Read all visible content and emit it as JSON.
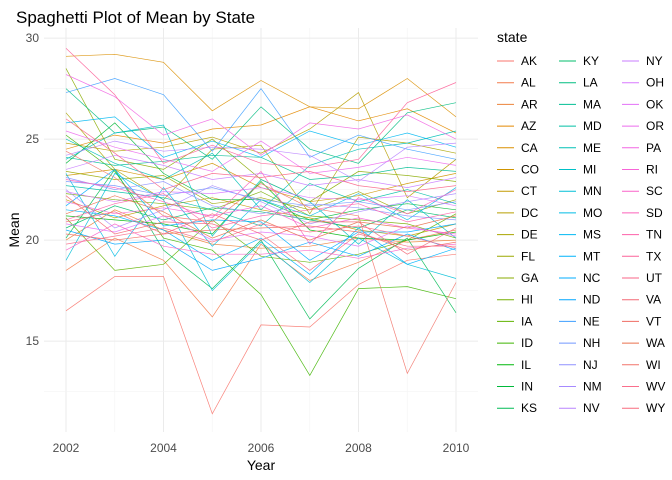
{
  "chart_data": {
    "type": "line",
    "title": "Spaghetti Plot of Mean by State",
    "xlabel": "Year",
    "ylabel": "Mean",
    "xlim": [
      2002,
      2010
    ],
    "ylim": [
      10.5,
      30.5
    ],
    "xticks": [
      2002,
      2004,
      2006,
      2008,
      2010
    ],
    "yticks": [
      15,
      20,
      25,
      30
    ],
    "grid": true,
    "legend_title": "state",
    "legend_position": "right",
    "x": [
      2002,
      2003,
      2004,
      2005,
      2006,
      2007,
      2008,
      2009,
      2010
    ],
    "series": [
      {
        "name": "AK",
        "color": "#F8766D",
        "values": [
          16.5,
          18.2,
          18.2,
          11.4,
          15.8,
          15.7,
          17.8,
          19.0,
          19.3
        ]
      },
      {
        "name": "AL",
        "color": "#F47C4B",
        "values": [
          18.5,
          20.1,
          19.0,
          16.2,
          19.8,
          18.0,
          18.9,
          20.0,
          20.5
        ]
      },
      {
        "name": "AR",
        "color": "#EC8239",
        "values": [
          20.0,
          21.5,
          20.5,
          19.8,
          19.6,
          19.7,
          20.1,
          19.9,
          20.0
        ]
      },
      {
        "name": "AZ",
        "color": "#E38900",
        "values": [
          24.5,
          25.2,
          24.8,
          25.5,
          25.7,
          26.6,
          25.9,
          26.5,
          25.3
        ]
      },
      {
        "name": "CA",
        "color": "#DA8F00",
        "values": [
          29.1,
          29.2,
          28.8,
          26.4,
          27.9,
          26.6,
          26.5,
          28.0,
          26.1
        ]
      },
      {
        "name": "CO",
        "color": "#CF9400",
        "values": [
          23.2,
          23.5,
          23.0,
          23.8,
          22.6,
          21.9,
          22.2,
          22.8,
          23.3
        ]
      },
      {
        "name": "CT",
        "color": "#C49A00",
        "values": [
          22.0,
          21.1,
          21.7,
          22.1,
          21.5,
          21.1,
          20.5,
          20.2,
          20.8
        ]
      },
      {
        "name": "DC",
        "color": "#B79F00",
        "values": [
          24.8,
          24.4,
          24.6,
          25.1,
          24.3,
          25.5,
          27.3,
          22.1,
          24.0
        ]
      },
      {
        "name": "DE",
        "color": "#AAA400",
        "values": [
          26.3,
          23.5,
          22.0,
          24.5,
          24.7,
          21.3,
          25.1,
          24.8,
          24.3
        ]
      },
      {
        "name": "FL",
        "color": "#9BA800",
        "values": [
          23.4,
          23.0,
          23.2,
          21.8,
          22.1,
          21.5,
          22.4,
          21.3,
          22.0
        ]
      },
      {
        "name": "GA",
        "color": "#8AAB00",
        "values": [
          28.5,
          24.0,
          23.5,
          25.0,
          23.0,
          21.9,
          23.4,
          23.2,
          22.9
        ]
      },
      {
        "name": "HI",
        "color": "#77AF00",
        "values": [
          22.3,
          22.0,
          21.8,
          21.5,
          22.4,
          21.2,
          21.0,
          20.8,
          20.1
        ]
      },
      {
        "name": "IA",
        "color": "#60B200",
        "values": [
          21.1,
          18.5,
          18.8,
          21.0,
          19.2,
          18.9,
          19.3,
          20.0,
          21.3
        ]
      },
      {
        "name": "ID",
        "color": "#3FB500",
        "values": [
          25.2,
          23.4,
          20.1,
          19.5,
          17.3,
          13.3,
          17.6,
          17.7,
          17.1
        ]
      },
      {
        "name": "IL",
        "color": "#00B70C",
        "values": [
          21.2,
          21.0,
          20.8,
          20.3,
          22.9,
          20.5,
          20.1,
          20.0,
          20.4
        ]
      },
      {
        "name": "IN",
        "color": "#00B93A",
        "values": [
          23.8,
          25.8,
          23.3,
          22.0,
          22.0,
          21.0,
          21.5,
          21.8,
          21.5
        ]
      },
      {
        "name": "KS",
        "color": "#00BB55",
        "values": [
          20.1,
          23.5,
          19.5,
          17.6,
          20.0,
          16.1,
          18.6,
          20.1,
          16.4
        ]
      },
      {
        "name": "KY",
        "color": "#00BC6B",
        "values": [
          20.6,
          21.7,
          21.0,
          21.6,
          21.4,
          21.0,
          20.6,
          21.5,
          21.1
        ]
      },
      {
        "name": "LA",
        "color": "#00BD80",
        "values": [
          27.5,
          25.3,
          25.6,
          24.0,
          26.6,
          24.5,
          23.8,
          26.3,
          26.8
        ]
      },
      {
        "name": "MA",
        "color": "#00BE93",
        "values": [
          24.1,
          23.7,
          23.9,
          24.2,
          24.1,
          23.0,
          23.2,
          23.6,
          23.4
        ]
      },
      {
        "name": "MD",
        "color": "#00BFA5",
        "values": [
          22.7,
          22.4,
          22.1,
          21.5,
          20.7,
          22.8,
          21.9,
          22.5,
          21.8
        ]
      },
      {
        "name": "ME",
        "color": "#00C0B6",
        "values": [
          25.0,
          23.8,
          23.0,
          24.3,
          21.5,
          23.7,
          24.5,
          24.8,
          25.4
        ]
      },
      {
        "name": "MI",
        "color": "#00C0C7",
        "values": [
          24.0,
          25.3,
          25.7,
          20.2,
          23.0,
          21.9,
          19.8,
          22.0,
          20.1
        ]
      },
      {
        "name": "MN",
        "color": "#00BFD7",
        "values": [
          19.0,
          23.3,
          22.0,
          17.5,
          19.9,
          17.9,
          20.1,
          18.8,
          18.1
        ]
      },
      {
        "name": "MO",
        "color": "#00BCE5",
        "values": [
          23.3,
          19.2,
          22.6,
          19.7,
          22.0,
          21.2,
          22.3,
          21.0,
          22.6
        ]
      },
      {
        "name": "MS",
        "color": "#00B8F2",
        "values": [
          25.8,
          26.1,
          24.1,
          24.9,
          24.1,
          25.4,
          24.7,
          25.3,
          24.6
        ]
      },
      {
        "name": "MT",
        "color": "#00B3FC",
        "values": [
          21.5,
          21.2,
          20.5,
          19.0,
          20.1,
          18.3,
          20.6,
          18.8,
          19.6
        ]
      },
      {
        "name": "NC",
        "color": "#00ADFF",
        "values": [
          21.7,
          23.5,
          20.7,
          21.0,
          20.9,
          19.0,
          20.4,
          20.4,
          20.8
        ]
      },
      {
        "name": "ND",
        "color": "#00A6FF",
        "values": [
          20.5,
          19.8,
          20.0,
          18.5,
          19.1,
          19.9,
          19.2,
          20.3,
          19.5
        ]
      },
      {
        "name": "NE",
        "color": "#3D9EFF",
        "values": [
          27.3,
          28.0,
          27.2,
          24.4,
          27.5,
          24.1,
          25.2,
          24.5,
          24.0
        ]
      },
      {
        "name": "NH",
        "color": "#7296FF",
        "values": [
          22.9,
          22.7,
          22.2,
          22.6,
          22.0,
          21.7,
          21.9,
          21.5,
          21.9
        ]
      },
      {
        "name": "NJ",
        "color": "#8F91FF",
        "values": [
          23.1,
          22.5,
          22.9,
          21.7,
          21.3,
          21.8,
          21.6,
          21.2,
          21.0
        ]
      },
      {
        "name": "NM",
        "color": "#A68AFF",
        "values": [
          22.5,
          20.6,
          21.5,
          22.7,
          21.9,
          20.8,
          21.4,
          21.9,
          22.3
        ]
      },
      {
        "name": "NV",
        "color": "#B983FF",
        "values": [
          24.2,
          24.9,
          24.4,
          24.6,
          24.5,
          24.2,
          22.9,
          24.6,
          24.8
        ]
      },
      {
        "name": "NY",
        "color": "#CA7EFF",
        "values": [
          23.5,
          24.2,
          23.7,
          23.0,
          23.3,
          22.7,
          23.0,
          22.6,
          23.1
        ]
      },
      {
        "name": "OH",
        "color": "#D878FF",
        "values": [
          22.4,
          21.9,
          22.4,
          22.3,
          22.6,
          22.1,
          22.0,
          22.2,
          21.7
        ]
      },
      {
        "name": "OK",
        "color": "#E371F7",
        "values": [
          20.8,
          20.4,
          21.2,
          20.0,
          20.4,
          20.2,
          19.7,
          20.7,
          20.2
        ]
      },
      {
        "name": "OR",
        "color": "#EC6CEE",
        "values": [
          25.4,
          24.6,
          24.0,
          23.4,
          24.9,
          23.3,
          23.6,
          24.1,
          23.7
        ]
      },
      {
        "name": "PA",
        "color": "#F267E3",
        "values": [
          28.2,
          27.1,
          25.2,
          26.0,
          24.2,
          25.8,
          25.5,
          26.2,
          25.0
        ]
      },
      {
        "name": "RI",
        "color": "#F764D7",
        "values": [
          21.9,
          21.3,
          21.6,
          21.2,
          21.7,
          20.6,
          21.1,
          20.6,
          20.3
        ]
      },
      {
        "name": "SC",
        "color": "#FA62C9",
        "values": [
          19.5,
          20.8,
          19.7,
          19.3,
          19.3,
          19.5,
          19.1,
          19.6,
          19.8
        ]
      },
      {
        "name": "SD",
        "color": "#FC61BA",
        "values": [
          23.0,
          22.6,
          21.9,
          21.1,
          23.4,
          19.8,
          22.1,
          21.3,
          22.5
        ]
      },
      {
        "name": "TN",
        "color": "#FD61AA",
        "values": [
          21.0,
          21.8,
          22.3,
          20.6,
          21.2,
          21.5,
          21.8,
          20.9,
          21.4
        ]
      },
      {
        "name": "TX",
        "color": "#FC6299",
        "values": [
          29.5,
          27.2,
          23.8,
          24.7,
          23.8,
          23.6,
          24.0,
          26.8,
          27.8
        ]
      },
      {
        "name": "UT",
        "color": "#F96587",
        "values": [
          26.0,
          24.3,
          22.5,
          23.3,
          23.1,
          23.4,
          22.7,
          22.4,
          22.7
        ]
      },
      {
        "name": "VA",
        "color": "#F46875",
        "values": [
          22.2,
          20.3,
          20.9,
          20.8,
          20.0,
          20.9,
          20.9,
          19.3,
          20.6
        ]
      },
      {
        "name": "VT",
        "color": "#EF6C62",
        "values": [
          20.3,
          20.0,
          20.3,
          20.5,
          20.6,
          20.7,
          20.4,
          19.5,
          19.9
        ]
      },
      {
        "name": "WA",
        "color": "#E9704E",
        "values": [
          21.3,
          22.2,
          21.4,
          20.1,
          21.0,
          20.0,
          20.9,
          20.6,
          21.2
        ]
      },
      {
        "name": "WI",
        "color": "#F2746A",
        "values": [
          24.4,
          23.1,
          21.2,
          20.9,
          22.8,
          21.6,
          21.2,
          13.4,
          17.9
        ]
      },
      {
        "name": "WV",
        "color": "#FA6F8C",
        "values": [
          19.8,
          20.2,
          20.6,
          19.9,
          20.8,
          20.4,
          20.7,
          20.2,
          19.6
        ]
      },
      {
        "name": "WY",
        "color": "#F86C7E",
        "values": [
          20.9,
          21.4,
          20.3,
          21.3,
          20.3,
          18.5,
          20.3,
          19.7,
          19.7
        ]
      }
    ]
  }
}
